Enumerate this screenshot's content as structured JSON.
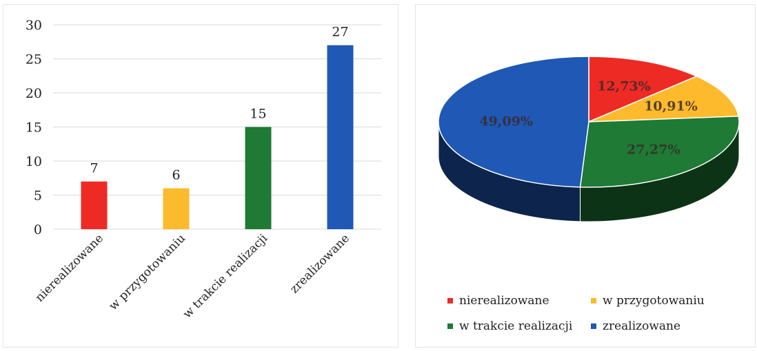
{
  "chart_data": [
    {
      "type": "bar",
      "categories": [
        "nierealizowane",
        "w przygotowaniu",
        "w trakcie realizacji",
        "zrealizowane"
      ],
      "values": [
        7,
        6,
        15,
        27
      ],
      "colors": [
        "#ee2a24",
        "#fdba2c",
        "#1e7a34",
        "#1f58b5"
      ],
      "yticks": [
        0,
        5,
        10,
        15,
        20,
        25,
        30
      ],
      "ylim": [
        0,
        30
      ],
      "grid": true,
      "data_labels": true
    },
    {
      "type": "pie",
      "style": "3d",
      "labels": [
        "nierealizowane",
        "w przygotowaniu",
        "w trakcie realizacji",
        "zrealizowane"
      ],
      "values": [
        12.73,
        10.91,
        27.27,
        49.09
      ],
      "value_labels": [
        "12,73%",
        "10,91%",
        "27,27%",
        "49,09%"
      ],
      "colors": [
        "#ee2a24",
        "#fdba2c",
        "#1e7a34",
        "#1f58b5"
      ],
      "legend_position": "bottom"
    }
  ]
}
